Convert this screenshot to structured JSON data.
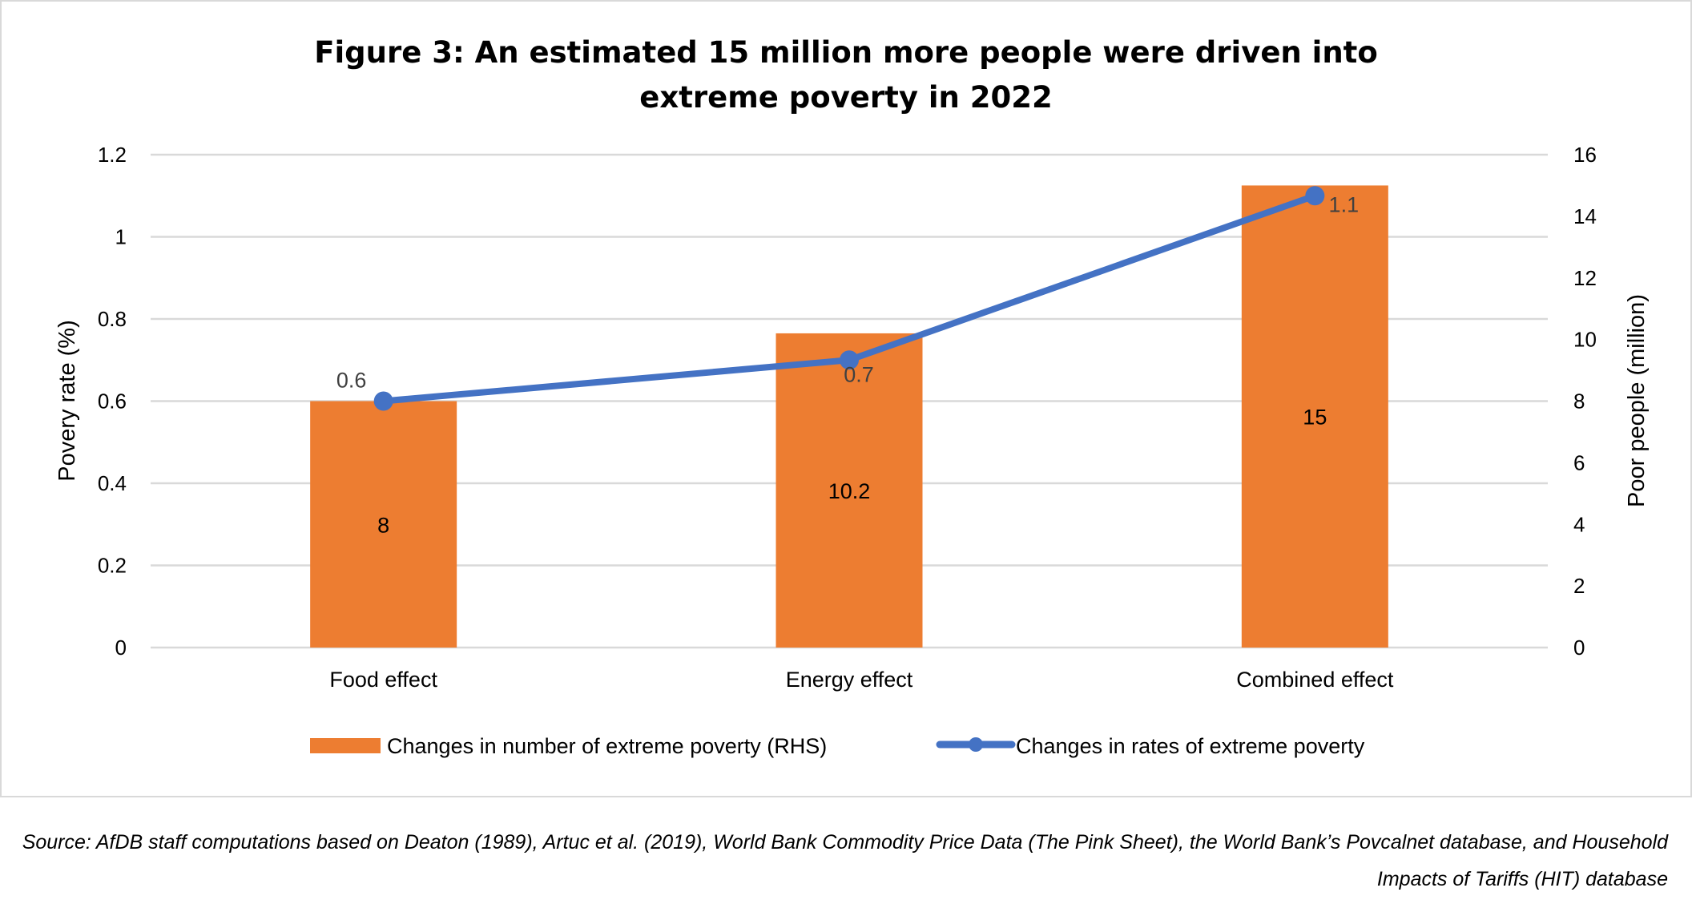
{
  "chart_data": {
    "type": "bar",
    "title": "Figure 3: An estimated 15 million more people were driven into extreme poverty in 2022",
    "title_lines": [
      "Figure 3: An estimated 15 million more people were driven into",
      "extreme poverty in 2022"
    ],
    "categories": [
      "Food effect",
      "Energy effect",
      "Combined effect"
    ],
    "series": [
      {
        "name": "Changes in number of extreme poverty (RHS)",
        "type": "bar",
        "axis": "right",
        "color": "#ED7D31",
        "values": [
          8,
          10.2,
          15
        ],
        "labels": [
          "8",
          "10.2",
          "15"
        ]
      },
      {
        "name": "Changes in rates of extreme poverty",
        "type": "line",
        "axis": "left",
        "color": "#4472C4",
        "values": [
          0.6,
          0.7,
          1.1
        ],
        "labels": [
          "0.6",
          "0.7",
          "1.1"
        ]
      }
    ],
    "ylabel": "Povery rate (%)",
    "ylim": [
      0,
      1.2
    ],
    "yticks": [
      "0",
      "0.2",
      "0.4",
      "0.6",
      "0.8",
      "1",
      "1.2"
    ],
    "y2label": "Poor people (million)",
    "y2lim": [
      0,
      16
    ],
    "y2ticks": [
      "0",
      "2",
      "4",
      "6",
      "8",
      "10",
      "12",
      "14",
      "16"
    ],
    "xlabel": "",
    "grid": true,
    "legend": "bottom"
  },
  "source": "Source: AfDB staff computations based on Deaton (1989), Artuc et al. (2019), World Bank Commodity Price Data (The Pink Sheet), the World Bank’s Povcalnet database, and Household Impacts of Tariffs (HIT) database"
}
